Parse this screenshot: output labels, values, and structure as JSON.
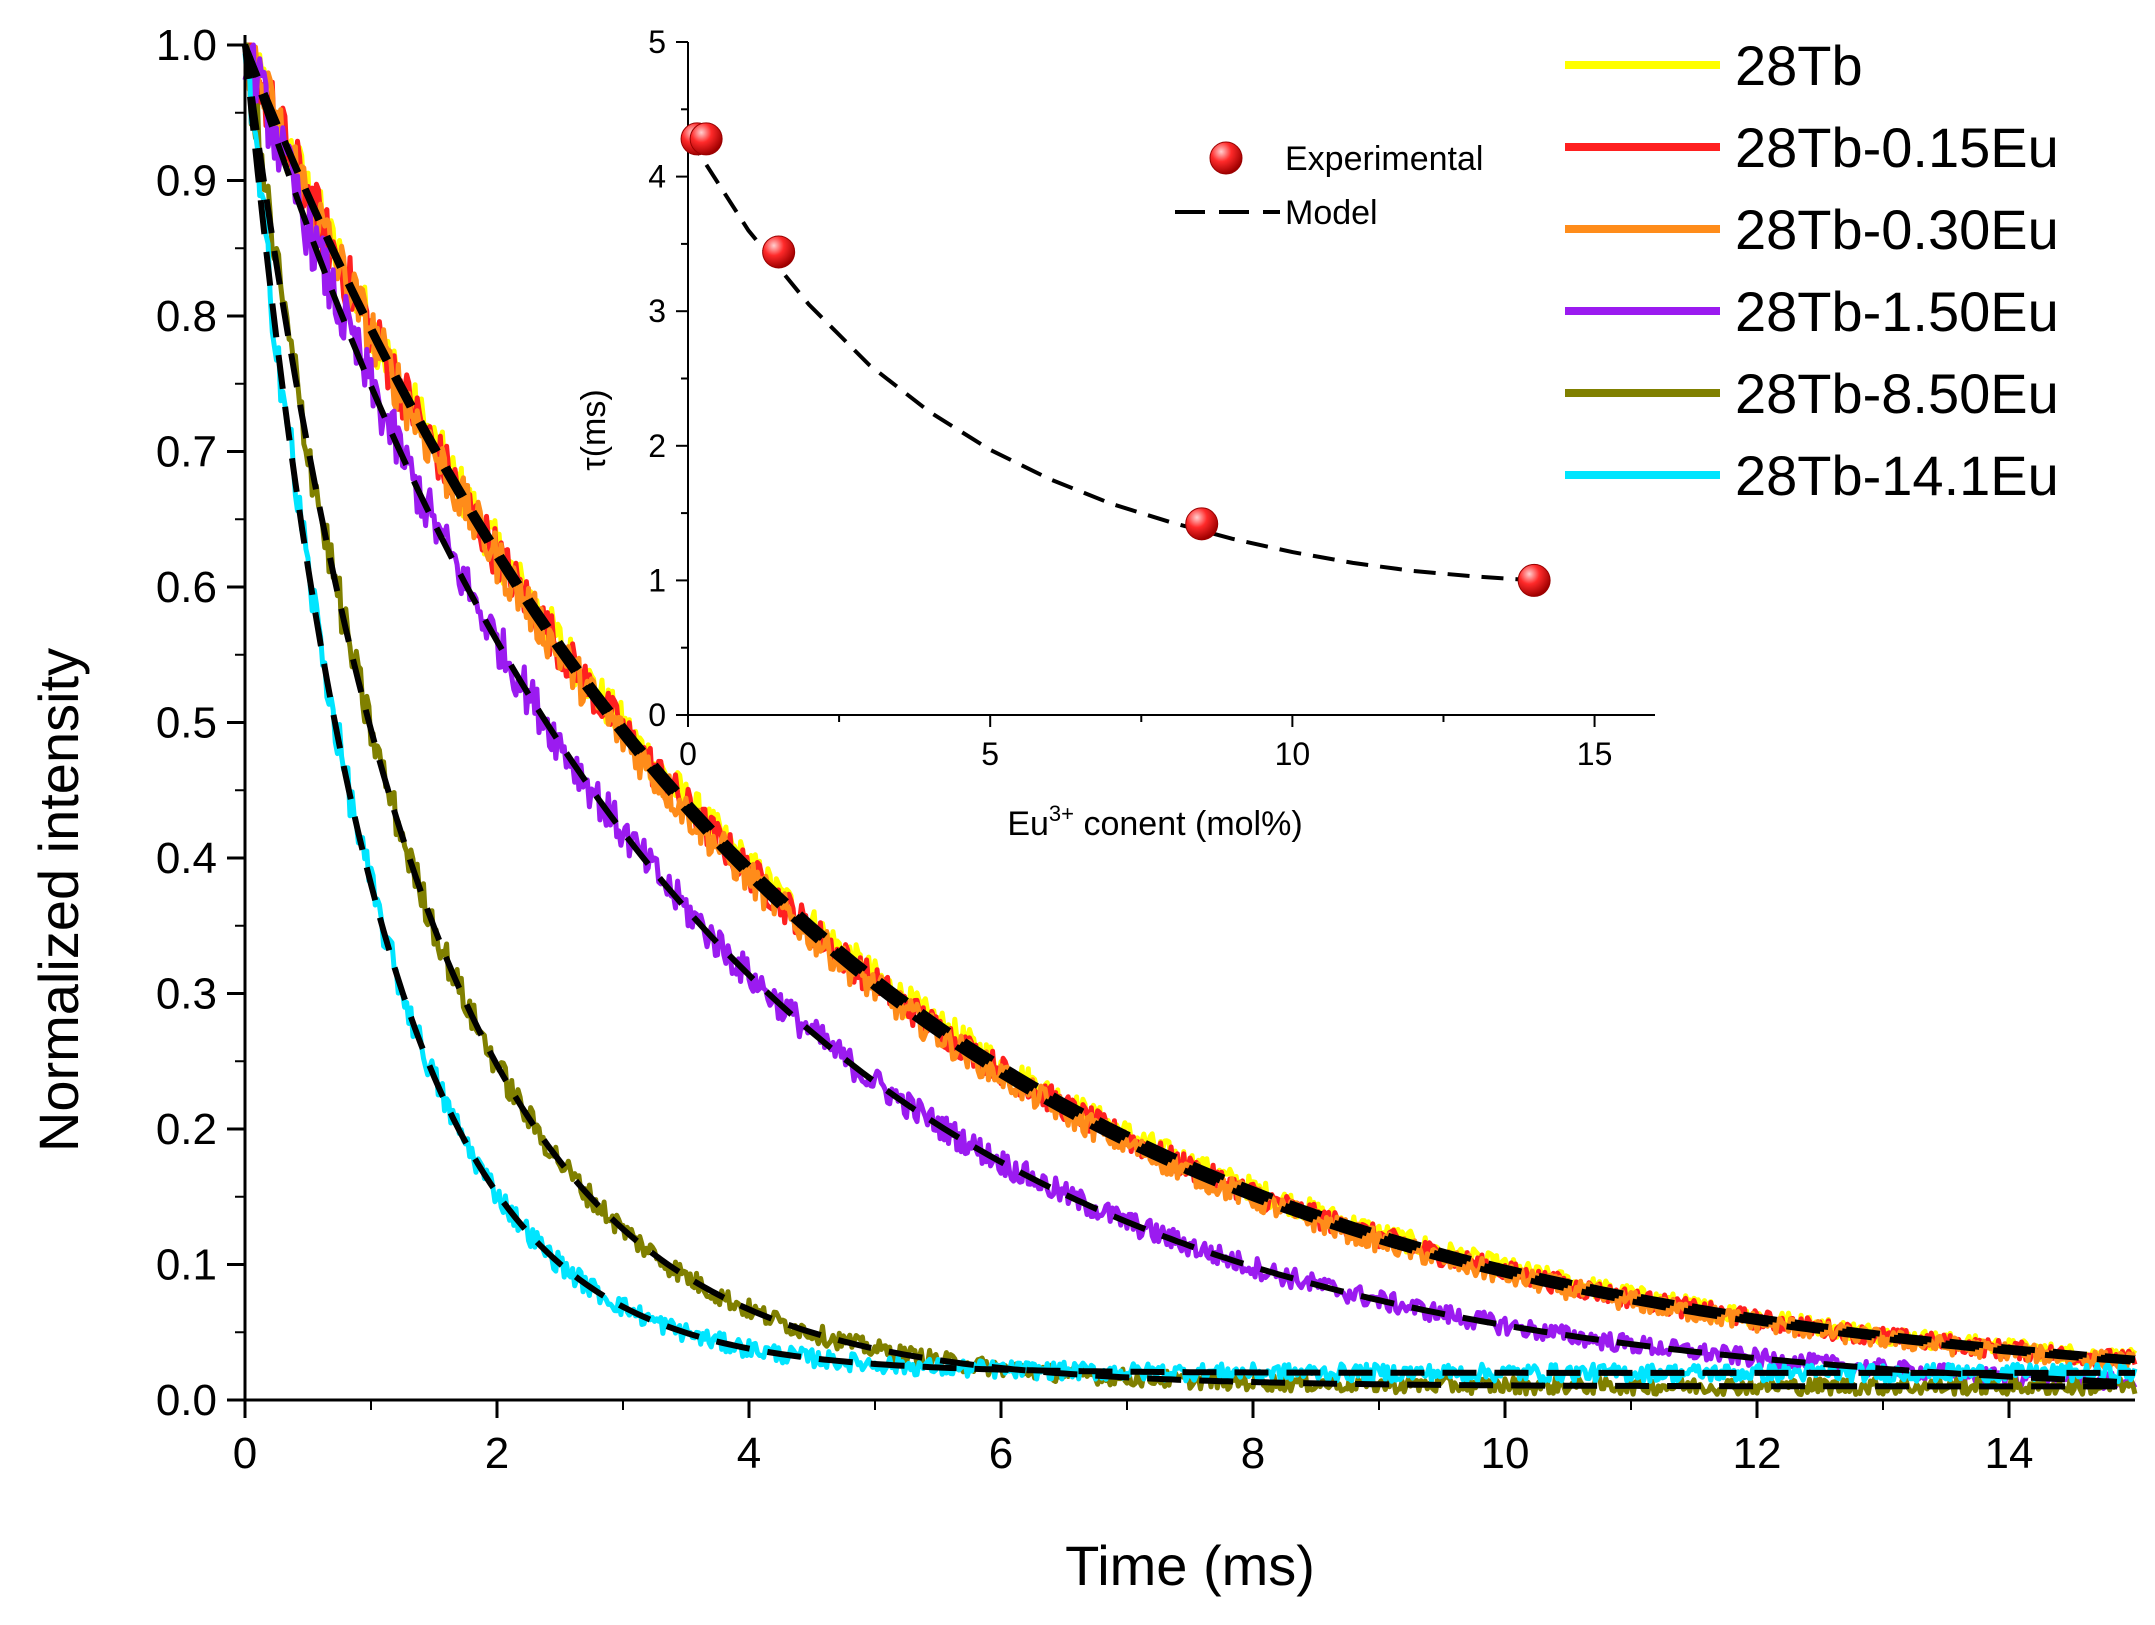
{
  "chart_data": [
    {
      "type": "line",
      "xlabel": "Time (ms)",
      "ylabel": "Normalized intensity",
      "xlim": [
        0,
        15
      ],
      "ylim": [
        0,
        1.0
      ],
      "x_ticks": [
        "0",
        "2",
        "4",
        "6",
        "8",
        "10",
        "12",
        "14"
      ],
      "y_ticks": [
        "0.0",
        "0.1",
        "0.2",
        "0.3",
        "0.4",
        "0.5",
        "0.6",
        "0.7",
        "0.8",
        "0.9",
        "1.0"
      ],
      "legend_position": "top-right",
      "series": [
        {
          "name": "28Tb",
          "color": "#ffff00",
          "tau_ms": 4.3,
          "tail": 0.0
        },
        {
          "name": "28Tb-0.15Eu",
          "color": "#ff2020",
          "tau_ms": 4.25,
          "tail": 0.0
        },
        {
          "name": "28Tb-0.30Eu",
          "color": "#ff8c1a",
          "tau_ms": 4.2,
          "tail": 0.0
        },
        {
          "name": "28Tb-1.50Eu",
          "color": "#9b1bf0",
          "tau_ms": 3.45,
          "tail": 0.0
        },
        {
          "name": "28Tb-8.50Eu",
          "color": "#808000",
          "tau_ms": 1.4,
          "tail": 0.01
        },
        {
          "name": "28Tb-14.1Eu",
          "color": "#00e5ff",
          "tau_ms": 1.0,
          "tail": 0.02
        }
      ],
      "fit_style": "black dashed"
    },
    {
      "type": "scatter",
      "xlabel": "Eu3+ conent (mol%)",
      "ylabel": "τ(ms)",
      "xlim": [
        0,
        16
      ],
      "ylim": [
        0,
        5
      ],
      "x_ticks": [
        "0",
        "5",
        "10",
        "15"
      ],
      "y_ticks": [
        "0",
        "1",
        "2",
        "3",
        "4",
        "5"
      ],
      "legend_position": "top-right",
      "series": [
        {
          "name": "Experimental",
          "x": [
            0.15,
            0.3,
            1.5,
            8.5,
            14.0
          ],
          "y": [
            4.28,
            4.28,
            3.44,
            1.42,
            1.0
          ],
          "color": "#ee1111"
        },
        {
          "name": "Model",
          "x": [
            0,
            1,
            2,
            3,
            4,
            5,
            6,
            7,
            8,
            9,
            10,
            11,
            12,
            13,
            14
          ],
          "y": [
            4.3,
            3.6,
            3.05,
            2.6,
            2.25,
            1.97,
            1.75,
            1.57,
            1.43,
            1.31,
            1.21,
            1.13,
            1.07,
            1.03,
            1.0
          ],
          "color": "#000000"
        }
      ]
    }
  ]
}
